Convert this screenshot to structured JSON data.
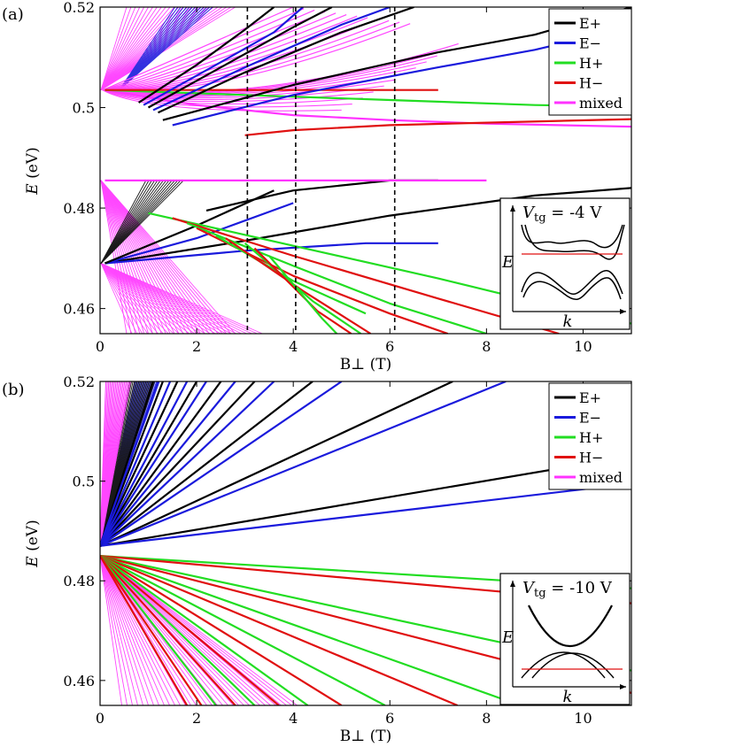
{
  "chart_data": [
    {
      "panel_label": "(a)",
      "type": "line",
      "xlabel": "B⊥ (T)",
      "ylabel_var": "E",
      "ylabel_unit": "(eV)",
      "xlim": [
        0,
        11
      ],
      "ylim": [
        0.455,
        0.52
      ],
      "xticks": [
        "0",
        "2",
        "4",
        "6",
        "8",
        "10"
      ],
      "yticks": [
        "0.46",
        "0.48",
        "0.5",
        "0.52"
      ],
      "dashed_verticals": [
        3.05,
        4.05,
        6.1
      ],
      "legend": {
        "placement": "top-right",
        "entries": [
          {
            "label": "E+",
            "color": "#000000"
          },
          {
            "label": "E−",
            "color": "#1a1adc"
          },
          {
            "label": "H+",
            "color": "#22dd22"
          },
          {
            "label": "H−",
            "color": "#e01010"
          },
          {
            "label": "mixed",
            "color": "#ff33ff"
          }
        ]
      },
      "inset": {
        "title_var": "V",
        "title_sub": "tg",
        "title_value": " = -4 V",
        "ylabel": "E",
        "xlabel": "k"
      },
      "series": [
        {
          "color": "#000000",
          "x": [
            2.2,
            4.0,
            6.0,
            7.0
          ],
          "y": [
            0.4795,
            0.4835,
            0.4855,
            0.4855
          ]
        },
        {
          "color": "#000000",
          "x": [
            0.1,
            3.0,
            6.0,
            9.0,
            11.0
          ],
          "y": [
            0.469,
            0.4735,
            0.4785,
            0.4825,
            0.484
          ]
        },
        {
          "color": "#1a1adc",
          "x": [
            0.1,
            3.0,
            5.5,
            7.0
          ],
          "y": [
            0.469,
            0.4715,
            0.473,
            0.473
          ]
        },
        {
          "color": "#1a1adc",
          "x": [
            0.1,
            2.0,
            4.0
          ],
          "y": [
            0.469,
            0.474,
            0.481
          ]
        },
        {
          "color": "#000000",
          "x": [
            0.1,
            2.0,
            3.6
          ],
          "y": [
            0.469,
            0.4765,
            0.4835
          ]
        },
        {
          "color": "#ff33ff",
          "x": [
            0.1,
            3.0,
            6.0,
            8.0
          ],
          "y": [
            0.4855,
            0.4855,
            0.4855,
            0.4855
          ]
        },
        {
          "color": "#22dd22",
          "x": [
            1.0,
            4.0,
            7.0,
            10.0,
            11.0
          ],
          "y": [
            0.479,
            0.4725,
            0.466,
            0.459,
            0.457
          ]
        },
        {
          "color": "#e01010",
          "x": [
            1.5,
            4.0,
            7.0,
            9.5
          ],
          "y": [
            0.478,
            0.4705,
            0.462,
            0.455
          ]
        },
        {
          "color": "#22dd22",
          "x": [
            1.8,
            4.0,
            6.0,
            8.0
          ],
          "y": [
            0.477,
            0.4685,
            0.461,
            0.455
          ]
        },
        {
          "color": "#e01010",
          "x": [
            2.0,
            4.0,
            6.0,
            7.2
          ],
          "y": [
            0.476,
            0.4665,
            0.459,
            0.455
          ]
        },
        {
          "color": "#22dd22",
          "x": [
            2.4,
            4.0,
            5.5
          ],
          "y": [
            0.4745,
            0.4655,
            0.459
          ]
        },
        {
          "color": "#e01010",
          "x": [
            2.6,
            4.2,
            5.6
          ],
          "y": [
            0.474,
            0.4635,
            0.455
          ]
        },
        {
          "color": "#22dd22",
          "x": [
            3.0,
            4.4,
            5.4
          ],
          "y": [
            0.473,
            0.4615,
            0.455
          ]
        },
        {
          "color": "#e01010",
          "x": [
            3.2,
            4.5,
            5.2
          ],
          "y": [
            0.472,
            0.4595,
            0.455
          ]
        },
        {
          "color": "#22dd22",
          "x": [
            3.5,
            4.6,
            4.9
          ],
          "y": [
            0.4705,
            0.458,
            0.455
          ]
        },
        {
          "color": "#ff33ff",
          "x": [
            0.1,
            2.0,
            4.0,
            6.0,
            8.0,
            11.0
          ],
          "y": [
            0.5035,
            0.5005,
            0.4985,
            0.4975,
            0.4968,
            0.4962
          ]
        },
        {
          "color": "#e01010",
          "x": [
            3.0,
            4.0,
            6.0,
            8.0,
            11.0
          ],
          "y": [
            0.4945,
            0.4955,
            0.4965,
            0.497,
            0.4977
          ]
        },
        {
          "color": "#22dd22",
          "x": [
            0.1,
            3.0,
            6.0,
            9.0,
            11.0
          ],
          "y": [
            0.5035,
            0.5025,
            0.5015,
            0.5005,
            0.5002
          ]
        },
        {
          "color": "#e01010",
          "x": [
            0.1,
            3.0,
            5.0,
            7.0
          ],
          "y": [
            0.5035,
            0.5035,
            0.5035,
            0.5035
          ]
        },
        {
          "color": "#1a1adc",
          "x": [
            1.5,
            4.0,
            7.0,
            9.0,
            11.0
          ],
          "y": [
            0.4965,
            0.5025,
            0.508,
            0.5115,
            0.516
          ]
        },
        {
          "color": "#000000",
          "x": [
            1.3,
            4.0,
            7.0,
            9.0,
            11.0
          ],
          "y": [
            0.4975,
            0.5045,
            0.511,
            0.5145,
            0.52
          ]
        },
        {
          "color": "#000000",
          "x": [
            1.2,
            3.0,
            5.0,
            6.5
          ],
          "y": [
            0.499,
            0.507,
            0.515,
            0.52
          ]
        },
        {
          "color": "#1a1adc",
          "x": [
            1.1,
            3.0,
            5.0,
            6.0
          ],
          "y": [
            0.4995,
            0.508,
            0.5165,
            0.52
          ]
        },
        {
          "color": "#000000",
          "x": [
            1.0,
            2.5,
            4.0,
            4.8
          ],
          "y": [
            0.5,
            0.508,
            0.516,
            0.52
          ]
        },
        {
          "color": "#1a1adc",
          "x": [
            0.9,
            2.4,
            3.6,
            4.2
          ],
          "y": [
            0.5005,
            0.5085,
            0.515,
            0.52
          ]
        },
        {
          "color": "#000000",
          "x": [
            0.8,
            2.0,
            3.0,
            3.6
          ],
          "y": [
            0.501,
            0.5085,
            0.5155,
            0.52
          ]
        }
      ]
    },
    {
      "panel_label": "(b)",
      "type": "line",
      "xlabel": "B⊥ (T)",
      "ylabel_var": "E",
      "ylabel_unit": "(eV)",
      "xlim": [
        0,
        11
      ],
      "ylim": [
        0.455,
        0.52
      ],
      "xticks": [
        "0",
        "2",
        "4",
        "6",
        "8",
        "10"
      ],
      "yticks": [
        "0.46",
        "0.48",
        "0.5",
        "0.52"
      ],
      "dashed_verticals": [],
      "legend": {
        "placement": "top-right",
        "entries": [
          {
            "label": "E+",
            "color": "#000000"
          },
          {
            "label": "E−",
            "color": "#1a1adc"
          },
          {
            "label": "H+",
            "color": "#22dd22"
          },
          {
            "label": "H−",
            "color": "#e01010"
          },
          {
            "label": "mixed",
            "color": "#ff33ff"
          }
        ]
      },
      "inset": {
        "title_var": "V",
        "title_sub": "tg",
        "title_value": " = -10 V",
        "ylabel": "E",
        "xlabel": "k"
      },
      "series": [
        {
          "color": "#000000",
          "x": [
            0.0,
            11.0
          ],
          "y": [
            0.487,
            0.505
          ]
        },
        {
          "color": "#1a1adc",
          "x": [
            0.0,
            11.0
          ],
          "y": [
            0.487,
            0.4995
          ]
        },
        {
          "color": "#000000",
          "x": [
            0.0,
            7.3
          ],
          "y": [
            0.487,
            0.52
          ]
        },
        {
          "color": "#1a1adc",
          "x": [
            0.0,
            8.4
          ],
          "y": [
            0.487,
            0.52
          ]
        },
        {
          "color": "#000000",
          "x": [
            0.0,
            4.4
          ],
          "y": [
            0.487,
            0.52
          ]
        },
        {
          "color": "#1a1adc",
          "x": [
            0.0,
            5.0
          ],
          "y": [
            0.487,
            0.52
          ]
        },
        {
          "color": "#000000",
          "x": [
            0.0,
            3.2
          ],
          "y": [
            0.487,
            0.52
          ]
        },
        {
          "color": "#1a1adc",
          "x": [
            0.0,
            3.6
          ],
          "y": [
            0.487,
            0.52
          ]
        },
        {
          "color": "#000000",
          "x": [
            0.0,
            2.5
          ],
          "y": [
            0.487,
            0.52
          ]
        },
        {
          "color": "#1a1adc",
          "x": [
            0.0,
            2.8
          ],
          "y": [
            0.487,
            0.52
          ]
        },
        {
          "color": "#000000",
          "x": [
            0.0,
            2.0
          ],
          "y": [
            0.487,
            0.52
          ]
        },
        {
          "color": "#1a1adc",
          "x": [
            0.0,
            2.2
          ],
          "y": [
            0.487,
            0.52
          ]
        },
        {
          "color": "#000000",
          "x": [
            0.0,
            1.6
          ],
          "y": [
            0.487,
            0.52
          ]
        },
        {
          "color": "#1a1adc",
          "x": [
            0.0,
            1.8
          ],
          "y": [
            0.487,
            0.52
          ]
        },
        {
          "color": "#000000",
          "x": [
            0.0,
            1.3
          ],
          "y": [
            0.487,
            0.52
          ]
        },
        {
          "color": "#1a1adc",
          "x": [
            0.0,
            1.45
          ],
          "y": [
            0.487,
            0.52
          ]
        },
        {
          "color": "#000000",
          "x": [
            0.0,
            1.1
          ],
          "y": [
            0.487,
            0.52
          ]
        },
        {
          "color": "#1a1adc",
          "x": [
            0.0,
            1.2
          ],
          "y": [
            0.487,
            0.52
          ]
        },
        {
          "color": "#22dd22",
          "x": [
            0.0,
            11.0
          ],
          "y": [
            0.485,
            0.4785
          ]
        },
        {
          "color": "#e01010",
          "x": [
            0.0,
            11.0
          ],
          "y": [
            0.485,
            0.4755
          ]
        },
        {
          "color": "#22dd22",
          "x": [
            0.0,
            11.0
          ],
          "y": [
            0.485,
            0.462
          ]
        },
        {
          "color": "#e01010",
          "x": [
            0.0,
            11.0
          ],
          "y": [
            0.485,
            0.4575
          ]
        },
        {
          "color": "#22dd22",
          "x": [
            0.0,
            8.7
          ],
          "y": [
            0.485,
            0.455
          ]
        },
        {
          "color": "#e01010",
          "x": [
            0.0,
            7.4
          ],
          "y": [
            0.485,
            0.455
          ]
        },
        {
          "color": "#22dd22",
          "x": [
            0.0,
            5.9
          ],
          "y": [
            0.485,
            0.455
          ]
        },
        {
          "color": "#e01010",
          "x": [
            0.0,
            5.0
          ],
          "y": [
            0.485,
            0.455
          ]
        },
        {
          "color": "#22dd22",
          "x": [
            0.0,
            4.3
          ],
          "y": [
            0.485,
            0.455
          ]
        },
        {
          "color": "#e01010",
          "x": [
            0.0,
            3.7
          ],
          "y": [
            0.485,
            0.455
          ]
        },
        {
          "color": "#22dd22",
          "x": [
            0.0,
            3.2
          ],
          "y": [
            0.485,
            0.455
          ]
        },
        {
          "color": "#e01010",
          "x": [
            0.0,
            2.8
          ],
          "y": [
            0.485,
            0.455
          ]
        },
        {
          "color": "#22dd22",
          "x": [
            0.0,
            2.4
          ],
          "y": [
            0.485,
            0.455
          ]
        },
        {
          "color": "#e01010",
          "x": [
            0.0,
            2.1
          ],
          "y": [
            0.485,
            0.455
          ]
        },
        {
          "color": "#e01010",
          "x": [
            0.0,
            1.8
          ],
          "y": [
            0.485,
            0.455
          ]
        }
      ]
    }
  ]
}
